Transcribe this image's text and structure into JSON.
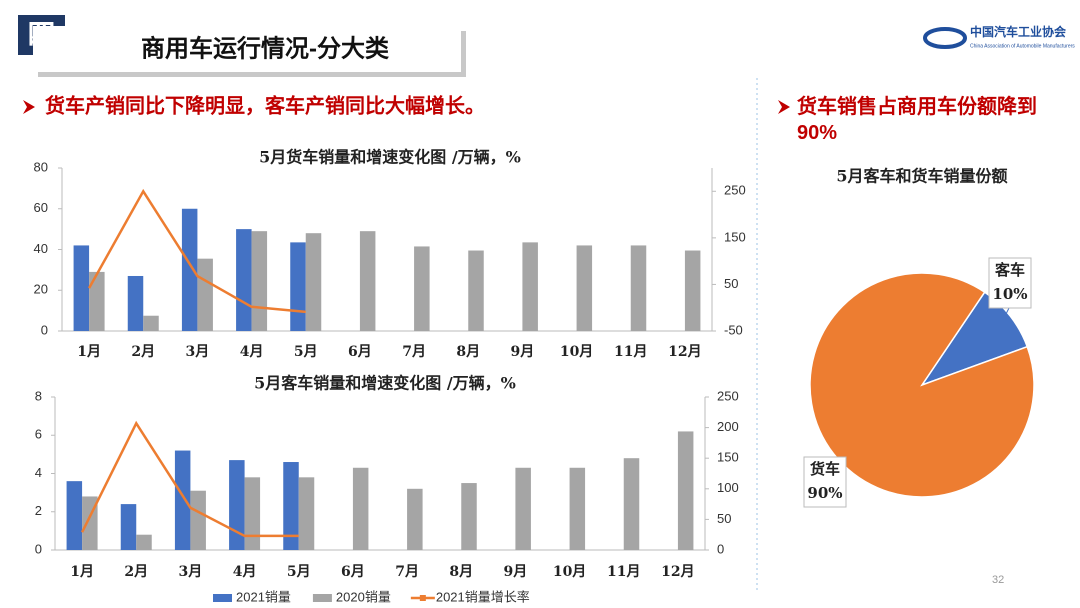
{
  "header": {
    "section": "四",
    "title": "商用车运行情况-分大类",
    "org_name": "中国汽车工业协会",
    "org_name_en": "China Association of Automobile Manufacturers"
  },
  "bullets": {
    "left": "货车产销同比下降明显，客车产销同比大幅增长。",
    "right": "货车销售占商用车份额降到90%"
  },
  "page_number": "32",
  "chart_data": [
    {
      "type": "bar_line",
      "title": "5月货车销量和增速变化图  /万辆，%",
      "categories": [
        "1月",
        "2月",
        "3月",
        "4月",
        "5月",
        "6月",
        "7月",
        "8月",
        "9月",
        "10月",
        "11月",
        "12月"
      ],
      "series": [
        {
          "type": "bar",
          "color": "#4472c4",
          "values": [
            42,
            27,
            60,
            50,
            43.5,
            null,
            null,
            null,
            null,
            null,
            null,
            null
          ]
        },
        {
          "type": "bar",
          "color": "#a5a5a5",
          "values": [
            29,
            7.5,
            35.5,
            49,
            48,
            49,
            41.5,
            39.5,
            43.5,
            42,
            42,
            39.5
          ]
        },
        {
          "type": "line",
          "axis": "y2",
          "color": "#ed7d31",
          "values": [
            42,
            250,
            68,
            2,
            -9,
            null,
            null,
            null,
            null,
            null,
            null,
            null
          ]
        }
      ],
      "ylim": [
        0,
        80
      ],
      "yticks": [
        0,
        20,
        40,
        60,
        80
      ],
      "y2lim": [
        -50,
        300
      ],
      "y2ticks": [
        -50,
        50,
        150,
        250
      ],
      "grid": false
    },
    {
      "type": "bar_line",
      "title": "5月客车销量和增速变化图  /万辆，%",
      "categories": [
        "1月",
        "2月",
        "3月",
        "4月",
        "5月",
        "6月",
        "7月",
        "8月",
        "9月",
        "10月",
        "11月",
        "12月"
      ],
      "series": [
        {
          "name": "2021销量",
          "type": "bar",
          "color": "#4472c4",
          "values": [
            3.6,
            2.4,
            5.2,
            4.7,
            4.6,
            null,
            null,
            null,
            null,
            null,
            null,
            null
          ]
        },
        {
          "name": "2020销量",
          "type": "bar",
          "color": "#a5a5a5",
          "values": [
            2.8,
            0.8,
            3.1,
            3.8,
            3.8,
            4.3,
            3.2,
            3.5,
            4.3,
            4.3,
            4.8,
            6.2
          ]
        },
        {
          "name": "2021销量增长率",
          "type": "line",
          "axis": "y2",
          "color": "#ed7d31",
          "values": [
            29,
            207,
            69,
            23,
            23,
            null,
            null,
            null,
            null,
            null,
            null,
            null
          ]
        }
      ],
      "ylim": [
        0,
        8
      ],
      "yticks": [
        0,
        2,
        4,
        6,
        8
      ],
      "y2lim": [
        0,
        250
      ],
      "y2ticks": [
        0,
        50,
        100,
        150,
        200,
        250
      ],
      "grid": false,
      "legend": "bottom"
    },
    {
      "type": "pie",
      "title": "5月客车和货车销量份额",
      "categories": [
        "客车",
        "货车"
      ],
      "values": [
        10,
        90
      ],
      "value_labels": [
        "10%",
        "90%"
      ],
      "colors": [
        "#4472c4",
        "#ed7d31"
      ]
    }
  ]
}
